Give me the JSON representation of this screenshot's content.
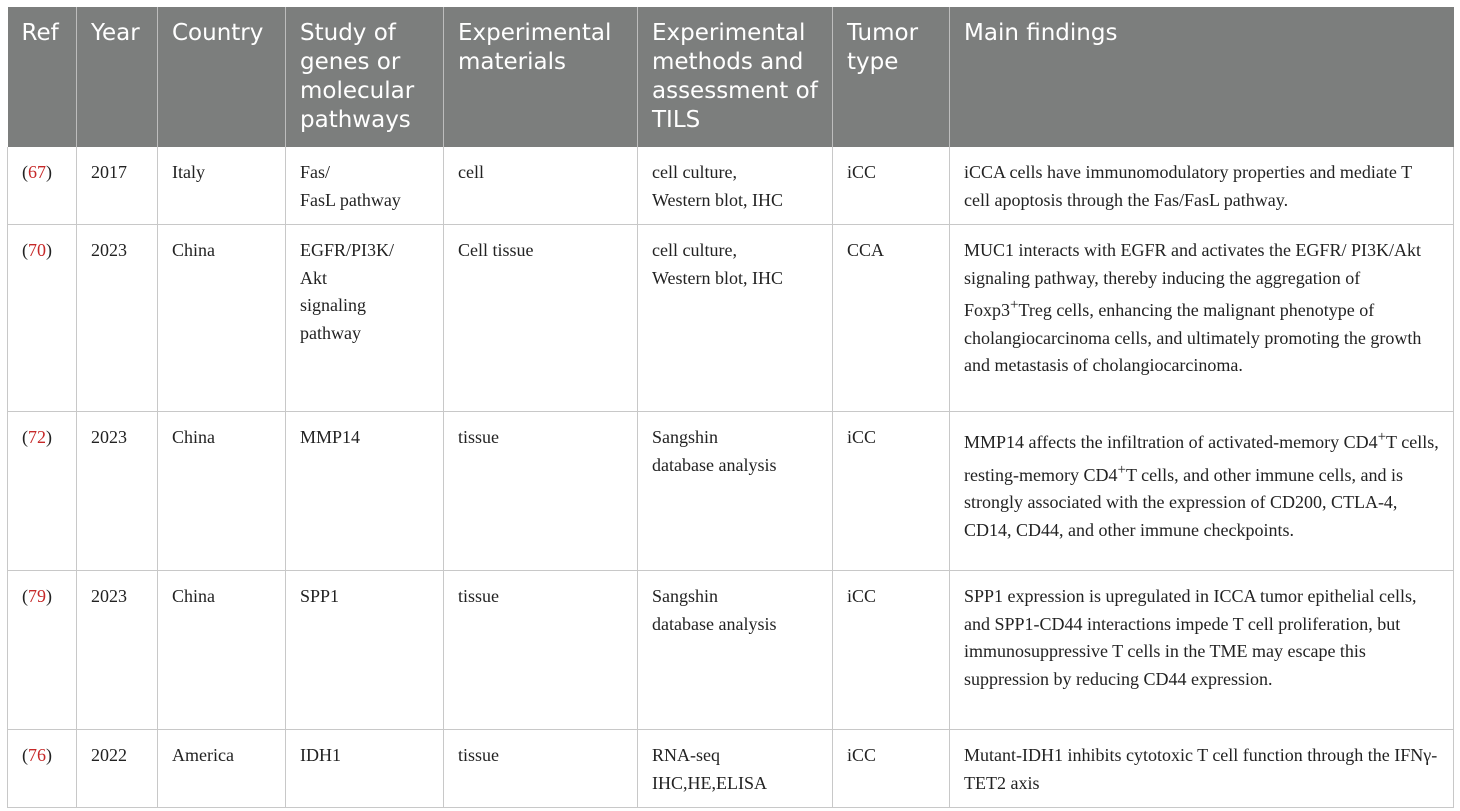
{
  "headers": [
    "Ref",
    "Year",
    "Country",
    "Study of genes or molecular pathways",
    "Experimental materials",
    "Experimental methods and assessment of TILS",
    "Tumor type",
    "Main findings"
  ],
  "rows": [
    {
      "ref": "67",
      "year": "2017",
      "country": "Italy",
      "genes": [
        "Fas/",
        "FasL pathway"
      ],
      "materials": "cell",
      "methods": [
        "cell culture,",
        "Western blot, IHC"
      ],
      "tumor": "iCC",
      "findings": [
        "iCCA cells have immunomodulatory properties and mediate T cell apoptosis through the Fas/FasL pathway."
      ]
    },
    {
      "ref": "70",
      "year": "2023",
      "country": "China",
      "genes": [
        "EGFR/PI3K/",
        "Akt",
        "signaling",
        "pathway"
      ],
      "materials": "Cell tissue",
      "methods": [
        "cell culture,",
        "Western blot, IHC"
      ],
      "tumor": "CCA",
      "findings": [
        "MUC1 interacts with EGFR and activates the EGFR/ PI3K/Akt signaling pathway, thereby inducing the aggregation of Foxp3",
        "+",
        "Treg cells, enhancing the malignant phenotype of cholangiocarcinoma cells, and ultimately promoting the growth and metastasis of cholangiocarcinoma."
      ]
    },
    {
      "ref": "72",
      "year": "2023",
      "country": "China",
      "genes": [
        "MMP14"
      ],
      "materials": "tissue",
      "methods": [
        "Sangshin",
        "database analysis"
      ],
      "tumor": "iCC",
      "findings": [
        "MMP14 affects the infiltration of activated-memory CD4",
        "+",
        "T cells, resting-memory CD4",
        "+",
        "T cells, and other immune cells, and is strongly associated with the expression of CD200, CTLA-4, CD14, CD44, and other immune checkpoints."
      ]
    },
    {
      "ref": "79",
      "year": "2023",
      "country": "China",
      "genes": [
        "SPP1"
      ],
      "materials": "tissue",
      "methods": [
        "Sangshin",
        "database analysis"
      ],
      "tumor": "iCC",
      "findings": [
        "SPP1 expression is upregulated in ICCA tumor epithelial cells, and SPP1-CD44 interactions impede T cell proliferation, but immunosuppressive T cells in the TME may escape this suppression by reducing CD44 expression."
      ]
    },
    {
      "ref": "76",
      "year": "2022",
      "country": "America",
      "genes": [
        "IDH1"
      ],
      "materials": "tissue",
      "methods": [
        "RNA-seq",
        "IHC,HE,ELISA"
      ],
      "tumor": "iCC",
      "findings": [
        "Mutant-IDH1 inhibits cytotoxic T cell function through the IFNγ-TET2 axis"
      ]
    }
  ]
}
